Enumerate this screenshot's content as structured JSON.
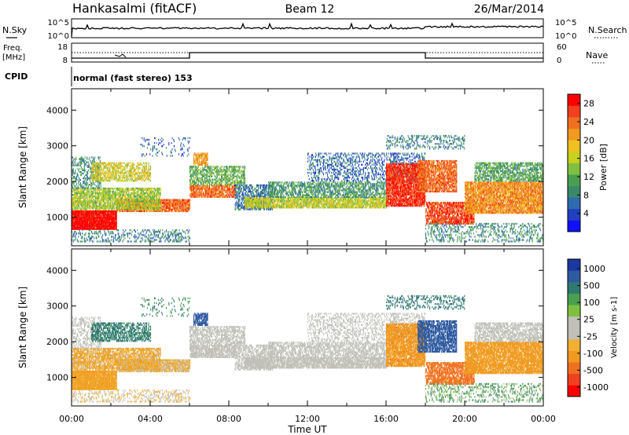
{
  "header": {
    "station": "Hankasalmi (fitACF)",
    "beam": "Beam 12",
    "date": "26/Mar/2014"
  },
  "noise_panel": {
    "left_label": "N.Sky",
    "right_label": "N.Search",
    "left_ticks": [
      "10^5",
      "10^0"
    ],
    "right_ticks": [
      "10^5",
      "10^0"
    ]
  },
  "freq_panel": {
    "left_label_1": "Freq.",
    "left_label_2": "[MHz]",
    "left_ticks": [
      "18",
      "8"
    ],
    "right_label": "Nave",
    "right_ticks": [
      "60",
      "0"
    ]
  },
  "cpid": {
    "label": "CPID",
    "text": "normal (fast stereo) 153"
  },
  "colors": {
    "power_scale": [
      "#1010ff",
      "#2040c0",
      "#2f6bb0",
      "#3a8a6a",
      "#4aa050",
      "#80c040",
      "#c8d020",
      "#f0c020",
      "#f09a20",
      "#f07020",
      "#f04020",
      "#ff0000"
    ],
    "velocity_scale": [
      "#ff0000",
      "#f04020",
      "#f07020",
      "#f09a20",
      "#f0b030",
      "#c0c0b8",
      "#c0c0b8",
      "#80c040",
      "#4aa050",
      "#2f7a70",
      "#2f5aa0",
      "#1a3aa0"
    ],
    "ground_scatter": "#c0c0b8"
  },
  "chart_data": [
    {
      "type": "heatmap",
      "title": "Power",
      "ylabel": "Slant Range [km]",
      "xlabel": "Time UT",
      "x_ticks": [
        "00:00",
        "04:00",
        "08:00",
        "12:00",
        "16:00",
        "20:00",
        "00:00"
      ],
      "x_range_hours": [
        0,
        24
      ],
      "y_ticks": [
        "1000",
        "2000",
        "3000",
        "4000"
      ],
      "ylim": [
        200,
        4600
      ],
      "colorbar": {
        "label": "Power [dB]",
        "ticks": [
          "4",
          "8",
          "12",
          "16",
          "20",
          "24",
          "28"
        ],
        "range": [
          0,
          30
        ]
      }
    },
    {
      "type": "heatmap",
      "title": "Velocity",
      "ylabel": "Slant Range [km]",
      "xlabel": "Time UT",
      "x_ticks": [
        "00:00",
        "04:00",
        "08:00",
        "12:00",
        "16:00",
        "20:00",
        "00:00"
      ],
      "x_range_hours": [
        0,
        24
      ],
      "y_ticks": [
        "1000",
        "2000",
        "3000",
        "4000"
      ],
      "ylim": [
        200,
        4600
      ],
      "colorbar": {
        "label": "Velocity [m s-1]",
        "ticks": [
          "1000",
          "500",
          "100",
          "25",
          "-25",
          "-100",
          "-500",
          "-1000"
        ]
      }
    }
  ]
}
